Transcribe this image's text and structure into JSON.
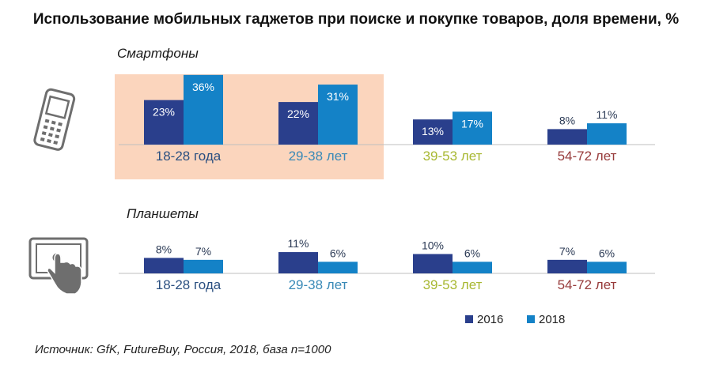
{
  "title": "Использование мобильных гаджетов при поиске и покупке товаров, доля времени, %",
  "source": "Источник:  GfK, FutureBuy, Россия, 2018, база n=1000",
  "colors": {
    "s2016": "#2a3f8c",
    "s2018": "#1482c7",
    "highlight": "#fbd5bd",
    "axis": "#bfbfbf",
    "icon": "#6e6e6e"
  },
  "chart_data": [
    {
      "type": "bar",
      "title": "Смартфоны",
      "icon": "smartphone-icon",
      "categories": [
        "18-28 года",
        "29-38 лет",
        "39-53 лет",
        "54-72 лет"
      ],
      "category_colors": [
        "#2a4f80",
        "#3a8ab7",
        "#a8b832",
        "#973b3b"
      ],
      "highlighted_categories": [
        "18-28 года",
        "29-38 лет"
      ],
      "series": [
        {
          "name": "2016",
          "values": [
            23,
            22,
            13,
            8
          ],
          "labels": [
            "23%",
            "22%",
            "13%",
            "8%"
          ]
        },
        {
          "name": "2018",
          "values": [
            36,
            31,
            17,
            11
          ],
          "labels": [
            "36%",
            "31%",
            "17%",
            "11%"
          ]
        }
      ],
      "ylim": [
        0,
        36
      ]
    },
    {
      "type": "bar",
      "title": "Планшеты",
      "icon": "tablet-icon",
      "categories": [
        "18-28 года",
        "29-38 лет",
        "39-53 лет",
        "54-72 лет"
      ],
      "category_colors": [
        "#2a4f80",
        "#3a8ab7",
        "#a8b832",
        "#973b3b"
      ],
      "series": [
        {
          "name": "2016",
          "values": [
            8,
            11,
            10,
            7
          ],
          "labels": [
            "8%",
            "11%",
            "10%",
            "7%"
          ]
        },
        {
          "name": "2018",
          "values": [
            7,
            6,
            6,
            6
          ],
          "labels": [
            "7%",
            "6%",
            "6%",
            "6%"
          ]
        }
      ],
      "ylim": [
        0,
        36
      ]
    }
  ],
  "legend": {
    "position": "bottom-right",
    "items": [
      {
        "label": "2016",
        "color": "#2a3f8c"
      },
      {
        "label": "2018",
        "color": "#1482c7"
      }
    ]
  }
}
